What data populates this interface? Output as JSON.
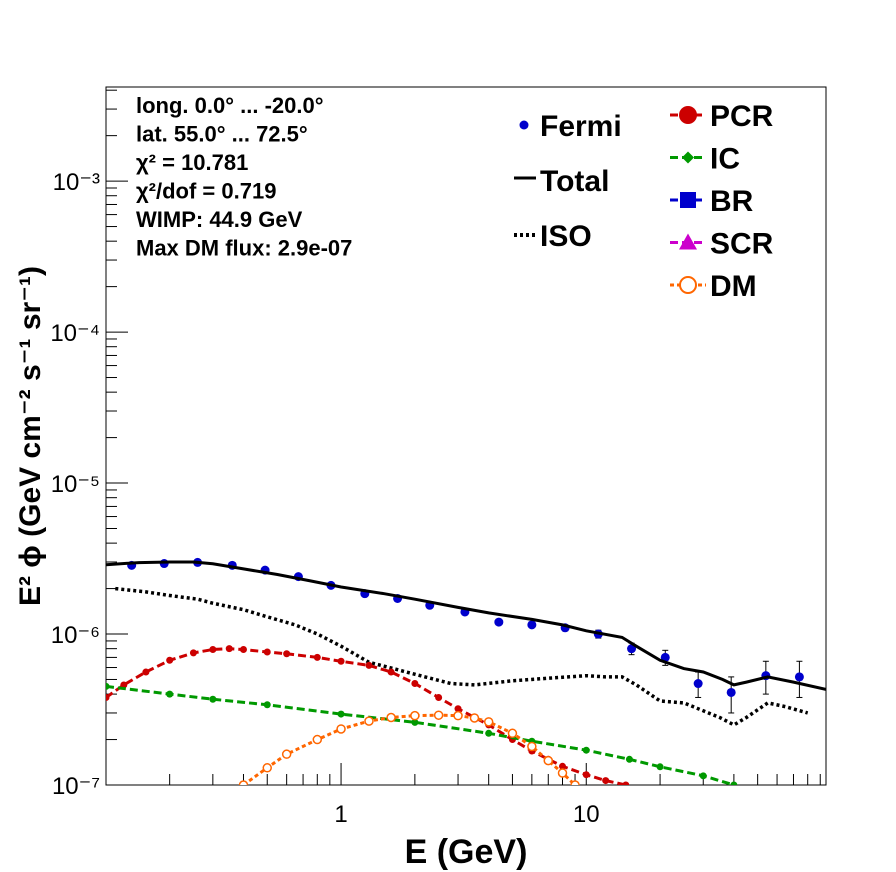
{
  "chart_data": {
    "type": "line",
    "xlabel": "E (GeV)",
    "ylabel": "E² ϕ (GeV cm⁻² s⁻¹ sr⁻¹)",
    "xscale": "log",
    "yscale": "log",
    "xlim": [
      0.11,
      95
    ],
    "ylim": [
      1e-07,
      0.0042
    ],
    "x_tick_labels": [
      "1",
      "10"
    ],
    "y_tick_labels": [
      "10⁻⁷",
      "10⁻⁶",
      "10⁻⁵",
      "10⁻⁴",
      "10⁻³"
    ],
    "annotations": [
      "long. 0.0° ... -20.0°",
      "lat. 55.0° ... 72.5°",
      "χ² = 10.781",
      "χ²/dof = 0.719",
      "WIMP: 44.9 GeV",
      "Max DM flux: 2.9e-07"
    ],
    "legend_placement": "top-right",
    "series": [
      {
        "name": "Fermi",
        "style": "points",
        "color": "#0000cc",
        "x": [
          0.14,
          0.19,
          0.26,
          0.36,
          0.49,
          0.67,
          0.91,
          1.25,
          1.7,
          2.3,
          3.2,
          4.4,
          6.0,
          8.2,
          11.2,
          15.3,
          21,
          28.6,
          39,
          54,
          74
        ],
        "y": [
          2.85e-06,
          2.93e-06,
          2.98e-06,
          2.85e-06,
          2.65e-06,
          2.4e-06,
          2.1e-06,
          1.85e-06,
          1.72e-06,
          1.55e-06,
          1.4e-06,
          1.2e-06,
          1.15e-06,
          1.1e-06,
          1e-06,
          8e-07,
          7e-07,
          4.7e-07,
          4.1e-07,
          5.3e-07,
          5.2e-07
        ],
        "yerr": [
          5e-08,
          5e-08,
          5e-08,
          5e-08,
          5e-08,
          5e-08,
          4e-08,
          4e-08,
          4e-08,
          4e-08,
          4e-08,
          4e-08,
          4e-08,
          5e-08,
          6e-08,
          7e-08,
          8e-08,
          9e-08,
          1.1e-07,
          1.3e-07,
          1.4e-07
        ]
      },
      {
        "name": "Total",
        "style": "solid",
        "color": "#000000",
        "x": [
          0.11,
          0.15,
          0.2,
          0.25,
          0.3,
          0.4,
          0.55,
          0.75,
          1.0,
          1.5,
          2.0,
          3.0,
          4.0,
          6.0,
          8.0,
          10,
          14,
          16,
          20,
          25,
          30,
          36,
          40,
          45,
          55,
          70,
          95
        ],
        "y": [
          2.88e-06,
          2.97e-06,
          3e-06,
          3e-06,
          2.92e-06,
          2.7e-06,
          2.48e-06,
          2.25e-06,
          2.05e-06,
          1.85e-06,
          1.7e-06,
          1.5e-06,
          1.38e-06,
          1.25e-06,
          1.15e-06,
          1.05e-06,
          9.5e-07,
          8.3e-07,
          6.7e-07,
          5.9e-07,
          5.6e-07,
          5e-07,
          4.6e-07,
          4.8e-07,
          5.2e-07,
          4.8e-07,
          4.3e-07
        ]
      },
      {
        "name": "ISO",
        "style": "dotted",
        "color": "#000000",
        "x": [
          0.12,
          0.16,
          0.2,
          0.26,
          0.3,
          0.4,
          0.5,
          0.65,
          0.8,
          1.0,
          1.3,
          1.7,
          2.2,
          2.8,
          3.5,
          5,
          7,
          10,
          12,
          14,
          16,
          20,
          25,
          30,
          35,
          40,
          45,
          55,
          65,
          80
        ],
        "y": [
          2e-06,
          1.9e-06,
          1.8e-06,
          1.7e-06,
          1.6e-06,
          1.45e-06,
          1.3e-06,
          1.15e-06,
          1e-06,
          8.3e-07,
          6.5e-07,
          5.8e-07,
          5.2e-07,
          4.7e-07,
          4.6e-07,
          4.9e-07,
          5.1e-07,
          5.3e-07,
          5.2e-07,
          5.2e-07,
          4.6e-07,
          3.6e-07,
          3.5e-07,
          3.1e-07,
          2.8e-07,
          2.5e-07,
          2.8e-07,
          3.5e-07,
          3.3e-07,
          3e-07
        ]
      },
      {
        "name": "PCR",
        "style": "dashed-markers",
        "color": "#cc0000",
        "x": [
          0.11,
          0.13,
          0.16,
          0.2,
          0.25,
          0.3,
          0.35,
          0.4,
          0.5,
          0.6,
          0.8,
          1.0,
          1.3,
          1.6,
          2.0,
          2.5,
          3.0,
          4.0,
          5.0,
          6.0,
          7.0,
          8.0,
          10,
          12,
          14.5
        ],
        "y": [
          3.8e-07,
          4.6e-07,
          5.6e-07,
          6.7e-07,
          7.5e-07,
          7.9e-07,
          8e-07,
          7.9e-07,
          7.6e-07,
          7.4e-07,
          7e-07,
          6.6e-07,
          6.2e-07,
          5.6e-07,
          4.7e-07,
          3.8e-07,
          3.2e-07,
          2.5e-07,
          2e-07,
          1.68e-07,
          1.48e-07,
          1.33e-07,
          1.17e-07,
          1.07e-07,
          1e-07
        ]
      },
      {
        "name": "IC",
        "style": "dashed-markers",
        "color": "#009900",
        "x": [
          0.11,
          0.2,
          0.3,
          0.5,
          1.0,
          2.0,
          4.0,
          6.0,
          10,
          15,
          20,
          30,
          40
        ],
        "y": [
          4.5e-07,
          4e-07,
          3.7e-07,
          3.4e-07,
          2.95e-07,
          2.6e-07,
          2.2e-07,
          1.95e-07,
          1.7e-07,
          1.48e-07,
          1.32e-07,
          1.15e-07,
          1e-07
        ]
      },
      {
        "name": "BR",
        "style": "dashed-markers",
        "color": "#0000cc",
        "x": [],
        "y": []
      },
      {
        "name": "SCR",
        "style": "dashed-markers",
        "color": "#cc00cc",
        "x": [],
        "y": []
      },
      {
        "name": "DM",
        "style": "dotted-open-circles",
        "color": "#ff6600",
        "x": [
          0.4,
          0.5,
          0.6,
          0.8,
          1.0,
          1.3,
          1.6,
          2.0,
          2.5,
          3.0,
          3.5,
          4.0,
          5.0,
          6.0,
          7.0,
          8.0,
          9.0
        ],
        "y": [
          1e-07,
          1.3e-07,
          1.6e-07,
          2e-07,
          2.35e-07,
          2.65e-07,
          2.8e-07,
          2.88e-07,
          2.9e-07,
          2.88e-07,
          2.78e-07,
          2.62e-07,
          2.2e-07,
          1.8e-07,
          1.45e-07,
          1.2e-07,
          1e-07
        ]
      }
    ]
  }
}
